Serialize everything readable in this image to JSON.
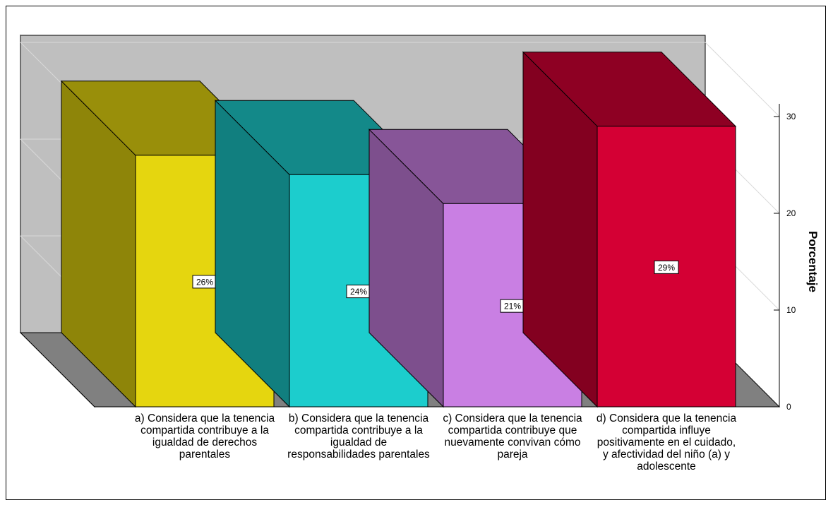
{
  "chart_data": {
    "type": "bar",
    "style": "3d",
    "categories": [
      "a) Considera que la tenencia compartida contribuye a la igualdad de derechos parentales",
      "b) Considera que la tenencia compartida contribuye a la igualdad de responsabilidades parentales",
      "c) Considera que la tenencia compartida contribuye que nuevamente convivan cómo pareja",
      "d) Considera que la tenencia compartida influye positivamente en el cuidado, y afectividad del niño (a) y adolescente"
    ],
    "values": [
      26,
      24,
      21,
      29
    ],
    "data_labels": [
      "26%",
      "24%",
      "21%",
      "29%"
    ],
    "colors": [
      "#e5d60f",
      "#1ccdcd",
      "#c97fe3",
      "#d40034"
    ],
    "ylabel": "Porcentaje",
    "ylim": [
      0,
      30
    ],
    "yticks": [
      0,
      10,
      20,
      30
    ],
    "ytick_labels": [
      "0",
      "10",
      "20",
      "30"
    ],
    "grid": true,
    "axis_position": "right"
  }
}
